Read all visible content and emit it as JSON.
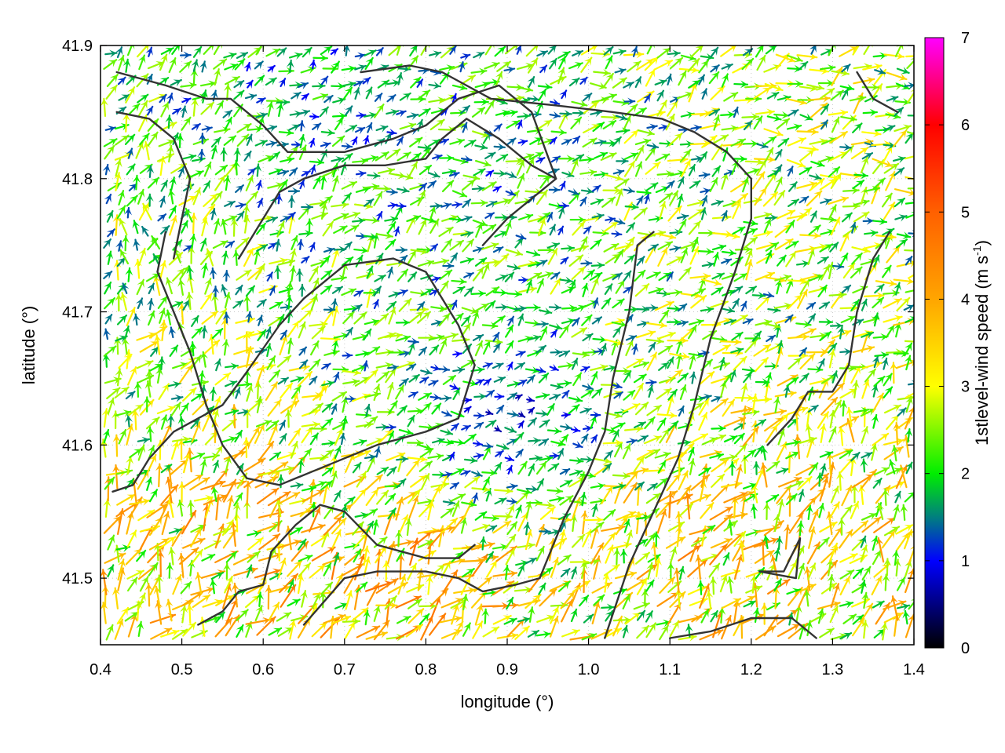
{
  "chart_data": {
    "type": "vector-field",
    "xlabel": "longitude (°)",
    "ylabel": "latitude (°)",
    "xlim": [
      0.4,
      1.4
    ],
    "ylim": [
      41.45,
      41.9
    ],
    "x_ticks": [
      "0.4",
      "0.5",
      "0.6",
      "0.7",
      "0.8",
      "0.9",
      "1.0",
      "1.1",
      "1.2",
      "1.3",
      "1.4"
    ],
    "y_ticks": [
      "41.5",
      "41.6",
      "41.7",
      "41.8",
      "41.9"
    ],
    "grid": true,
    "colorbar": {
      "title_main": "1stlevel-wind speed (m s",
      "title_sup": "-1",
      "title_end": ")",
      "range": [
        0,
        7
      ],
      "ticks": [
        "0",
        "1",
        "2",
        "3",
        "4",
        "5",
        "6",
        "7"
      ],
      "colormap": [
        {
          "v": 0,
          "color": "#000000"
        },
        {
          "v": 1,
          "color": "#0000ff"
        },
        {
          "v": 1.5,
          "color": "#007f7f"
        },
        {
          "v": 2,
          "color": "#00ee00"
        },
        {
          "v": 3,
          "color": "#ffff00"
        },
        {
          "v": 4,
          "color": "#ffa500"
        },
        {
          "v": 5,
          "color": "#ff6000"
        },
        {
          "v": 6,
          "color": "#ff0000"
        },
        {
          "v": 7,
          "color": "#ff00ff"
        }
      ]
    },
    "wind_field": {
      "description_none": "",
      "grid_step_lon": 0.0133,
      "grid_step_lat": 0.0112,
      "regions": [
        {
          "lon": 0.55,
          "lat": 41.52,
          "speed": 3.3,
          "dir_deg": 60
        },
        {
          "lon": 0.78,
          "lat": 41.48,
          "speed": 3.6,
          "dir_deg": 45
        },
        {
          "lon": 1.15,
          "lat": 41.52,
          "speed": 3.4,
          "dir_deg": 55
        },
        {
          "lon": 1.3,
          "lat": 41.55,
          "speed": 3.0,
          "dir_deg": 70
        },
        {
          "lon": 0.9,
          "lat": 41.62,
          "speed": 1.1,
          "dir_deg": 10
        },
        {
          "lon": 0.88,
          "lat": 41.8,
          "speed": 1.8,
          "dir_deg": 20
        },
        {
          "lon": 0.45,
          "lat": 41.75,
          "speed": 2.3,
          "dir_deg": 80
        },
        {
          "lon": 1.3,
          "lat": 41.85,
          "speed": 2.5,
          "dir_deg": 20
        },
        {
          "lon": 0.65,
          "lat": 41.85,
          "speed": 1.6,
          "dir_deg": 40
        },
        {
          "lon": 1.15,
          "lat": 41.72,
          "speed": 2.3,
          "dir_deg": 30
        }
      ]
    },
    "contours": [
      {
        "lon": [
          0.52,
          0.55,
          0.57,
          0.6,
          0.61,
          0.64,
          0.67,
          0.7,
          0.74,
          0.8,
          0.84,
          0.86
        ],
        "lat": [
          41.465,
          41.475,
          41.49,
          41.495,
          41.52,
          41.54,
          41.555,
          41.55,
          41.525,
          41.515,
          41.515,
          41.525
        ]
      },
      {
        "lon": [
          0.65,
          0.7,
          0.74,
          0.8,
          0.84,
          0.87,
          0.91,
          0.94,
          0.97,
          1.0,
          1.02,
          1.03,
          1.05,
          1.06,
          1.08
        ],
        "lat": [
          41.465,
          41.5,
          41.505,
          41.505,
          41.5,
          41.49,
          41.495,
          41.5,
          41.545,
          41.58,
          41.61,
          41.65,
          41.7,
          41.75,
          41.76
        ]
      },
      {
        "lon": [
          1.02,
          1.05,
          1.08,
          1.11,
          1.13,
          1.15,
          1.18,
          1.2,
          1.2,
          1.17,
          1.13,
          1.09,
          1.03,
          0.96,
          0.88,
          0.82,
          0.78,
          0.72
        ],
        "lat": [
          41.455,
          41.51,
          41.55,
          41.59,
          41.63,
          41.68,
          41.73,
          41.77,
          41.8,
          41.82,
          41.835,
          41.845,
          41.85,
          41.855,
          41.86,
          41.88,
          41.885,
          41.88
        ]
      },
      {
        "lon": [
          0.415,
          0.44,
          0.46,
          0.49,
          0.52,
          0.55,
          0.58,
          0.62,
          0.65,
          0.7,
          0.76,
          0.8,
          0.84,
          0.86
        ],
        "lat": [
          41.565,
          41.57,
          41.59,
          41.61,
          41.62,
          41.63,
          41.655,
          41.69,
          41.71,
          41.735,
          41.74,
          41.73,
          41.69,
          41.66
        ]
      },
      {
        "lon": [
          0.86,
          0.84,
          0.8,
          0.74,
          0.7,
          0.66,
          0.62,
          0.58,
          0.55,
          0.53,
          0.51,
          0.49,
          0.47,
          0.48
        ],
        "lat": [
          41.66,
          41.62,
          41.61,
          41.6,
          41.59,
          41.58,
          41.57,
          41.575,
          41.6,
          41.63,
          41.67,
          41.7,
          41.73,
          41.76
        ]
      },
      {
        "lon": [
          0.42,
          0.46,
          0.49,
          0.51,
          0.5,
          0.49
        ],
        "lat": [
          41.85,
          41.845,
          41.83,
          41.8,
          41.77,
          41.74
        ]
      },
      {
        "lon": [
          0.42,
          0.48,
          0.53,
          0.56,
          0.6,
          0.63,
          0.7,
          0.76,
          0.8,
          0.84,
          0.89,
          0.93,
          0.96,
          0.94,
          0.9,
          0.87
        ],
        "lat": [
          41.88,
          41.87,
          41.86,
          41.86,
          41.84,
          41.82,
          41.82,
          41.83,
          41.84,
          41.86,
          41.87,
          41.85,
          41.8,
          41.79,
          41.77,
          41.75
        ]
      },
      {
        "lon": [
          0.57,
          0.59,
          0.62,
          0.65,
          0.7,
          0.75,
          0.8,
          0.82,
          0.85,
          0.89,
          0.93,
          0.96
        ],
        "lat": [
          41.74,
          41.76,
          41.79,
          41.8,
          41.81,
          41.81,
          41.815,
          41.83,
          41.845,
          41.83,
          41.81,
          41.8
        ]
      },
      {
        "lon": [
          1.22,
          1.25,
          1.27,
          1.3,
          1.32,
          1.33,
          1.35,
          1.37
        ],
        "lat": [
          41.6,
          41.62,
          41.64,
          41.64,
          41.66,
          41.7,
          41.74,
          41.76
        ]
      },
      {
        "lon": [
          1.1,
          1.15,
          1.2,
          1.25,
          1.28
        ],
        "lat": [
          41.455,
          41.46,
          41.47,
          41.47,
          41.455
        ]
      },
      {
        "lon": [
          1.21,
          1.24,
          1.26,
          1.255,
          1.21
        ],
        "lat": [
          41.505,
          41.505,
          41.53,
          41.5,
          41.505
        ]
      },
      {
        "lon": [
          1.33,
          1.35,
          1.38
        ],
        "lat": [
          41.88,
          41.86,
          41.85
        ]
      }
    ]
  }
}
